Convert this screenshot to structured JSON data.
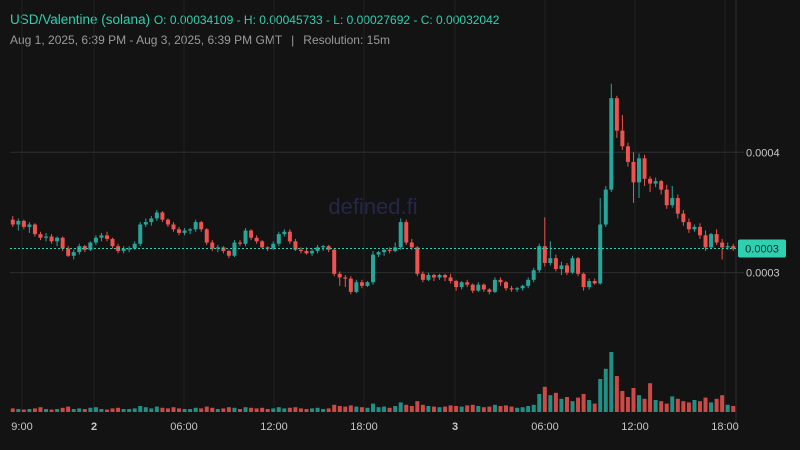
{
  "header": {
    "pair": "USD/Valentine (solana)",
    "ohlc": "O: 0.00034109 - H: 0.00045733 - L: 0.00027692 - C: 0.00032042",
    "range": "Aug 1, 2025, 6:39 PM - Aug 3, 2025, 6:39 PM GMT",
    "separator": "|",
    "resolution": "Resolution: 15m"
  },
  "watermark": "defined.fi",
  "colors": {
    "background": "#131313",
    "up": "#26a69a",
    "down": "#ef5350",
    "accent": "#2fd0b0",
    "grid": "#2b2b2b"
  },
  "chart_data": {
    "type": "candlestick",
    "interval": "15m",
    "x_tick_labels": [
      "9:00",
      "2",
      "06:00",
      "12:00",
      "18:00",
      "3",
      "06:00",
      "12:00",
      "18:00"
    ],
    "y_tick_labels": [
      "0.0004",
      "0.0003"
    ],
    "y_ticks": [
      0.0004,
      0.0003
    ],
    "ylim": [
      0.000244,
      0.000495
    ],
    "last_price_label": "0.0003",
    "last_price": 0.00032,
    "candles": [
      [
        0.000344,
        0.000347,
        0.000338,
        0.00034
      ],
      [
        0.00034,
        0.000345,
        0.000335,
        0.000343
      ],
      [
        0.000343,
        0.000344,
        0.000336,
        0.000338
      ],
      [
        0.000338,
        0.000342,
        0.000333,
        0.00034
      ],
      [
        0.00034,
        0.000341,
        0.00033,
        0.000332
      ],
      [
        0.000332,
        0.000334,
        0.000327,
        0.000329
      ],
      [
        0.000329,
        0.000333,
        0.000326,
        0.00033
      ],
      [
        0.00033,
        0.000332,
        0.000324,
        0.000326
      ],
      [
        0.000326,
        0.00033,
        0.000322,
        0.000329
      ],
      [
        0.000329,
        0.00033,
        0.000318,
        0.00032
      ],
      [
        0.00032,
        0.000322,
        0.000313,
        0.000314
      ],
      [
        0.000314,
        0.000319,
        0.000311,
        0.000317
      ],
      [
        0.000317,
        0.000324,
        0.000315,
        0.000322
      ],
      [
        0.000322,
        0.000323,
        0.000317,
        0.000319
      ],
      [
        0.000319,
        0.000326,
        0.000318,
        0.000325
      ],
      [
        0.000325,
        0.000331,
        0.000323,
        0.000329
      ],
      [
        0.000329,
        0.000333,
        0.000326,
        0.000331
      ],
      [
        0.000331,
        0.000334,
        0.000326,
        0.000328
      ],
      [
        0.000328,
        0.000329,
        0.00032,
        0.000322
      ],
      [
        0.000322,
        0.000324,
        0.000316,
        0.000318
      ],
      [
        0.000318,
        0.000322,
        0.000316,
        0.00032
      ],
      [
        0.00032,
        0.000322,
        0.000317,
        0.00032
      ],
      [
        0.00032,
        0.000326,
        0.000319,
        0.000324
      ],
      [
        0.000324,
        0.000342,
        0.000322,
        0.00034
      ],
      [
        0.00034,
        0.000345,
        0.000338,
        0.000342
      ],
      [
        0.000342,
        0.000347,
        0.000339,
        0.000345
      ],
      [
        0.000345,
        0.000352,
        0.000343,
        0.00035
      ],
      [
        0.00035,
        0.000351,
        0.000342,
        0.000344
      ],
      [
        0.000344,
        0.000345,
        0.000338,
        0.00034
      ],
      [
        0.00034,
        0.000342,
        0.000334,
        0.000336
      ],
      [
        0.000336,
        0.000338,
        0.000331,
        0.000333
      ],
      [
        0.000333,
        0.000337,
        0.000331,
        0.000335
      ],
      [
        0.000335,
        0.000337,
        0.000332,
        0.000336
      ],
      [
        0.000336,
        0.000344,
        0.000334,
        0.000342
      ],
      [
        0.000342,
        0.000343,
        0.000334,
        0.000336
      ],
      [
        0.000336,
        0.000337,
        0.000323,
        0.000325
      ],
      [
        0.000325,
        0.000327,
        0.000318,
        0.00032
      ],
      [
        0.00032,
        0.000323,
        0.000317,
        0.000321
      ],
      [
        0.000321,
        0.000322,
        0.000316,
        0.000318
      ],
      [
        0.000318,
        0.000319,
        0.000312,
        0.000314
      ],
      [
        0.000314,
        0.000327,
        0.000313,
        0.000325
      ],
      [
        0.000325,
        0.000327,
        0.000322,
        0.000324
      ],
      [
        0.000324,
        0.000337,
        0.000322,
        0.000335
      ],
      [
        0.000335,
        0.000336,
        0.000327,
        0.000329
      ],
      [
        0.000329,
        0.000331,
        0.000324,
        0.000326
      ],
      [
        0.000326,
        0.000327,
        0.00032,
        0.000321
      ],
      [
        0.000321,
        0.000322,
        0.000318,
        0.00032
      ],
      [
        0.00032,
        0.000326,
        0.000319,
        0.000324
      ],
      [
        0.000324,
        0.000334,
        0.000322,
        0.000332
      ],
      [
        0.000332,
        0.000336,
        0.00033,
        0.000334
      ],
      [
        0.000334,
        0.000336,
        0.000324,
        0.000326
      ],
      [
        0.000326,
        0.000328,
        0.000318,
        0.000319
      ],
      [
        0.000319,
        0.000321,
        0.000316,
        0.000318
      ],
      [
        0.000318,
        0.000321,
        0.000315,
        0.000316
      ],
      [
        0.000316,
        0.00032,
        0.000314,
        0.000318
      ],
      [
        0.000318,
        0.000323,
        0.000316,
        0.000321
      ],
      [
        0.000321,
        0.000323,
        0.000318,
        0.000322
      ],
      [
        0.000322,
        0.000323,
        0.000317,
        0.000319
      ],
      [
        0.000319,
        0.00032,
        0.000297,
        0.000299
      ],
      [
        0.000299,
        0.000301,
        0.000289,
        0.000296
      ],
      [
        0.000296,
        0.000298,
        0.000288,
        0.000295
      ],
      [
        0.000295,
        0.000297,
        0.000282,
        0.000284
      ],
      [
        0.000284,
        0.000294,
        0.000283,
        0.000292
      ],
      [
        0.000292,
        0.000294,
        0.000287,
        0.000289
      ],
      [
        0.000289,
        0.000293,
        0.000288,
        0.000292
      ],
      [
        0.000292,
        0.000318,
        0.00029,
        0.000315
      ],
      [
        0.000315,
        0.000318,
        0.000313,
        0.000317
      ],
      [
        0.000317,
        0.00032,
        0.000314,
        0.000319
      ],
      [
        0.000319,
        0.000321,
        0.000316,
        0.000318
      ],
      [
        0.000318,
        0.000325,
        0.000317,
        0.000321
      ],
      [
        0.000321,
        0.000345,
        0.000319,
        0.000342
      ],
      [
        0.000342,
        0.000344,
        0.000323,
        0.000325
      ],
      [
        0.000325,
        0.000328,
        0.000319,
        0.000321
      ],
      [
        0.000321,
        0.000322,
        0.000297,
        0.000299
      ],
      [
        0.000299,
        0.000301,
        0.000292,
        0.000294
      ],
      [
        0.000294,
        0.0003,
        0.000293,
        0.000298
      ],
      [
        0.000298,
        0.000299,
        0.000293,
        0.000296
      ],
      [
        0.000296,
        0.000299,
        0.000294,
        0.000298
      ],
      [
        0.000298,
        0.000299,
        0.000293,
        0.000296
      ],
      [
        0.000296,
        0.000299,
        0.000291,
        0.000293
      ],
      [
        0.000293,
        0.000294,
        0.000285,
        0.000288
      ],
      [
        0.000288,
        0.000293,
        0.000286,
        0.000292
      ],
      [
        0.000292,
        0.000294,
        0.000288,
        0.00029
      ],
      [
        0.00029,
        0.000291,
        0.000283,
        0.000285
      ],
      [
        0.000285,
        0.000292,
        0.000284,
        0.00029
      ],
      [
        0.00029,
        0.000291,
        0.000284,
        0.000286
      ],
      [
        0.000286,
        0.000287,
        0.000282,
        0.000284
      ],
      [
        0.000284,
        0.000296,
        0.000283,
        0.000294
      ],
      [
        0.000294,
        0.000296,
        0.000289,
        0.000292
      ],
      [
        0.000292,
        0.000293,
        0.000285,
        0.000287
      ],
      [
        0.000287,
        0.000289,
        0.000284,
        0.000286
      ],
      [
        0.000286,
        0.000288,
        0.000284,
        0.000287
      ],
      [
        0.000287,
        0.00029,
        0.000285,
        0.000289
      ],
      [
        0.000289,
        0.000296,
        0.000287,
        0.000294
      ],
      [
        0.000294,
        0.000304,
        0.000292,
        0.000302
      ],
      [
        0.000302,
        0.000324,
        0.0003,
        0.000322
      ],
      [
        0.000322,
        0.000346,
        0.000305,
        0.000308
      ],
      [
        0.000308,
        0.000326,
        0.000306,
        0.000312
      ],
      [
        0.000312,
        0.000315,
        0.000301,
        0.000303
      ],
      [
        0.000303,
        0.000309,
        0.000298,
        0.000306
      ],
      [
        0.000306,
        0.000308,
        0.000298,
        0.0003
      ],
      [
        0.0003,
        0.000314,
        0.000299,
        0.000312
      ],
      [
        0.000312,
        0.000313,
        0.000297,
        0.000299
      ],
      [
        0.000299,
        0.0003,
        0.000285,
        0.000288
      ],
      [
        0.000288,
        0.000295,
        0.000286,
        0.000293
      ],
      [
        0.000293,
        0.000295,
        0.00029,
        0.000291
      ],
      [
        0.000291,
        0.000362,
        0.00029,
        0.00034
      ],
      [
        0.00034,
        0.000372,
        0.000338,
        0.000369
      ],
      [
        0.000369,
        0.000457,
        0.000367,
        0.000445
      ],
      [
        0.000445,
        0.000447,
        0.000412,
        0.000418
      ],
      [
        0.000418,
        0.000431,
        0.000402,
        0.000405
      ],
      [
        0.000405,
        0.000408,
        0.000388,
        0.000392
      ],
      [
        0.000392,
        0.0004,
        0.000358,
        0.000375
      ],
      [
        0.000375,
        0.000399,
        0.000362,
        0.000395
      ],
      [
        0.000395,
        0.000398,
        0.000372,
        0.000378
      ],
      [
        0.000378,
        0.00038,
        0.000367,
        0.000374
      ],
      [
        0.000374,
        0.000379,
        0.000371,
        0.000376
      ],
      [
        0.000376,
        0.000377,
        0.000365,
        0.000369
      ],
      [
        0.000369,
        0.000373,
        0.000353,
        0.000356
      ],
      [
        0.000356,
        0.000372,
        0.000354,
        0.000362
      ],
      [
        0.000362,
        0.000365,
        0.000345,
        0.000349
      ],
      [
        0.000349,
        0.000352,
        0.000339,
        0.000342
      ],
      [
        0.000342,
        0.000345,
        0.000333,
        0.000336
      ],
      [
        0.000336,
        0.00034,
        0.000334,
        0.000338
      ],
      [
        0.000338,
        0.000341,
        0.000328,
        0.000331
      ],
      [
        0.000331,
        0.000335,
        0.000318,
        0.000321
      ],
      [
        0.000321,
        0.000333,
        0.00032,
        0.000332
      ],
      [
        0.000332,
        0.000336,
        0.000323,
        0.000325
      ],
      [
        0.000325,
        0.000328,
        0.000311,
        0.000321
      ],
      [
        0.000321,
        0.000325,
        0.000319,
        0.000322
      ],
      [
        0.000322,
        0.000324,
        0.000318,
        0.00032
      ]
    ],
    "volume": [
      0.06,
      0.05,
      0.04,
      0.05,
      0.06,
      0.08,
      0.05,
      0.04,
      0.05,
      0.07,
      0.09,
      0.05,
      0.06,
      0.05,
      0.07,
      0.08,
      0.05,
      0.04,
      0.06,
      0.07,
      0.05,
      0.05,
      0.06,
      0.1,
      0.08,
      0.06,
      0.09,
      0.07,
      0.06,
      0.08,
      0.06,
      0.05,
      0.05,
      0.07,
      0.06,
      0.09,
      0.07,
      0.05,
      0.06,
      0.08,
      0.07,
      0.05,
      0.08,
      0.07,
      0.06,
      0.07,
      0.05,
      0.06,
      0.08,
      0.06,
      0.07,
      0.08,
      0.06,
      0.05,
      0.06,
      0.07,
      0.05,
      0.06,
      0.12,
      0.1,
      0.09,
      0.11,
      0.09,
      0.08,
      0.07,
      0.14,
      0.08,
      0.09,
      0.07,
      0.1,
      0.16,
      0.12,
      0.1,
      0.18,
      0.12,
      0.1,
      0.09,
      0.08,
      0.09,
      0.11,
      0.1,
      0.09,
      0.11,
      0.12,
      0.1,
      0.08,
      0.09,
      0.12,
      0.1,
      0.11,
      0.09,
      0.07,
      0.08,
      0.1,
      0.12,
      0.3,
      0.42,
      0.28,
      0.32,
      0.22,
      0.25,
      0.18,
      0.24,
      0.3,
      0.2,
      0.14,
      0.55,
      0.72,
      1.0,
      0.6,
      0.35,
      0.25,
      0.4,
      0.28,
      0.22,
      0.48,
      0.2,
      0.18,
      0.14,
      0.26,
      0.22,
      0.18,
      0.16,
      0.2,
      0.18,
      0.24,
      0.16,
      0.22,
      0.28,
      0.12,
      0.1
    ]
  }
}
